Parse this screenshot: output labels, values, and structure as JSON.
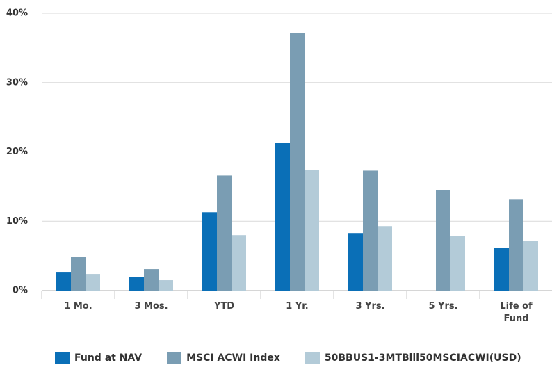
{
  "chart_data": {
    "type": "bar",
    "categories": [
      "1 Mo.",
      "3 Mos.",
      "YTD",
      "1 Yr.",
      "3 Yrs.",
      "5 Yrs.",
      "Life of Fund"
    ],
    "series": [
      {
        "name": "Fund at NAV",
        "color": "#0a6fb7",
        "values": [
          2.7,
          2.0,
          11.3,
          21.3,
          8.3,
          null,
          6.2
        ]
      },
      {
        "name": "MSCI ACWI Index",
        "color": "#7a9db3",
        "values": [
          4.9,
          3.1,
          16.6,
          37.1,
          17.3,
          14.5,
          13.2
        ]
      },
      {
        "name": "50BBUS1-3MTBill50MSCIACWI(USD)",
        "color": "#b3cbd8",
        "values": [
          2.4,
          1.5,
          8.0,
          17.4,
          9.3,
          7.9,
          7.2
        ]
      }
    ],
    "ylim": [
      0,
      40
    ],
    "yticks": [
      {
        "value": 0,
        "label": "0%"
      },
      {
        "value": 10,
        "label": "10%"
      },
      {
        "value": 20,
        "label": "20%"
      },
      {
        "value": 30,
        "label": "30%"
      },
      {
        "value": 40,
        "label": "40%"
      }
    ],
    "grid": true
  }
}
